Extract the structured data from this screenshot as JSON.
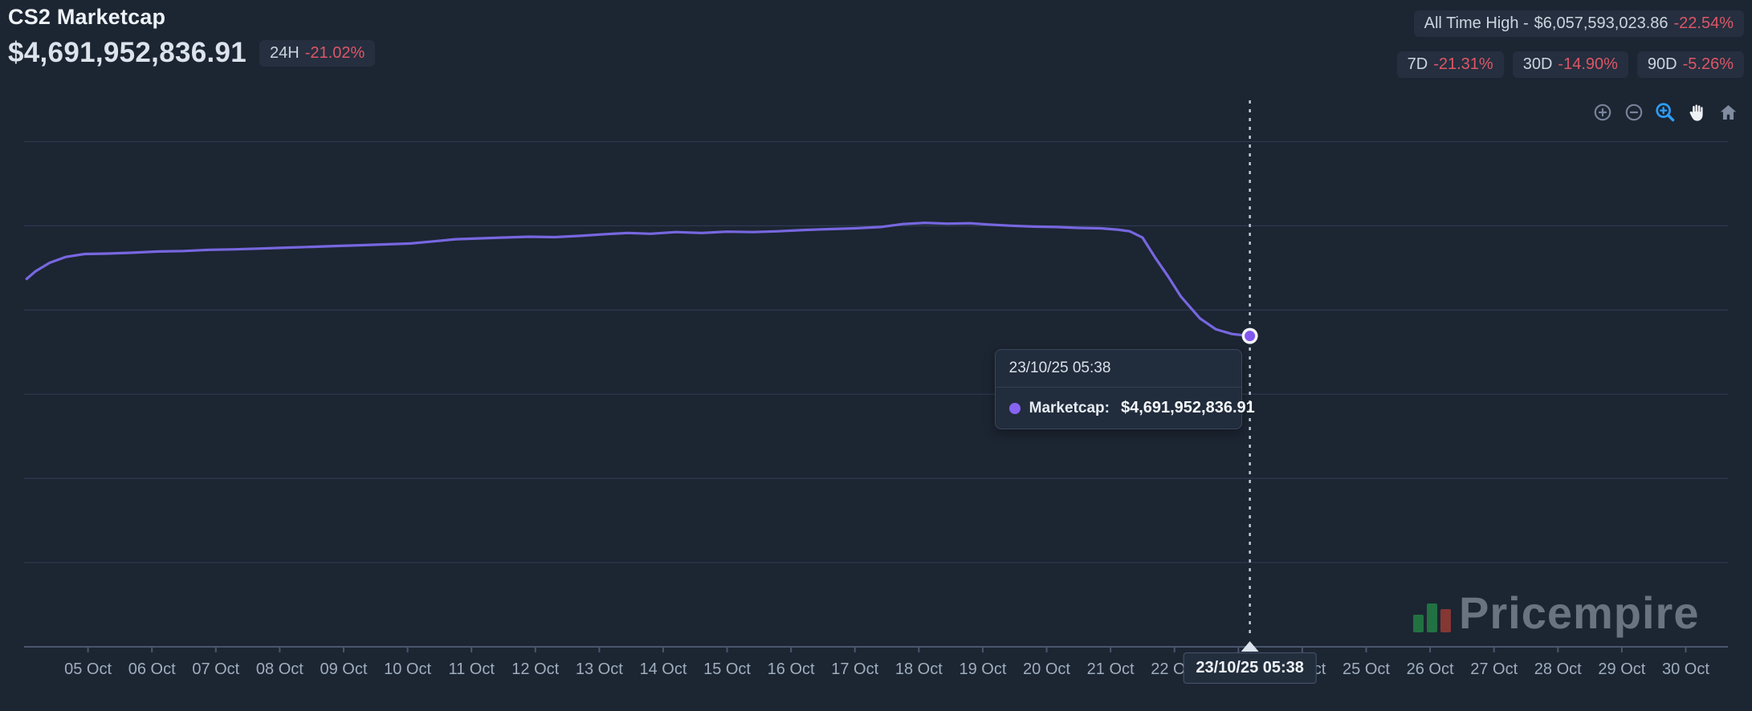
{
  "header": {
    "title": "CS2 Marketcap",
    "value": "$4,691,952,836.91",
    "change_24h": {
      "label": "24H",
      "value": "-21.02%"
    },
    "all_time_high": {
      "label": "All Time High -",
      "value": "$6,057,593,023.86",
      "change": "-22.54%"
    },
    "period_changes": [
      {
        "label": "7D",
        "value": "-21.31%"
      },
      {
        "label": "30D",
        "value": "-14.90%"
      },
      {
        "label": "90D",
        "value": "-5.26%"
      }
    ]
  },
  "toolbar": {
    "icons": [
      "zoom-in-icon",
      "zoom-out-icon",
      "selection-zoom-icon",
      "pan-icon",
      "reset-zoom-icon"
    ],
    "active_icon": "selection-zoom-icon"
  },
  "chart_data": {
    "type": "line",
    "title": "CS2 Marketcap",
    "xlabel": "",
    "ylabel": "",
    "grid": "horizontal-only",
    "legend": "none",
    "x_unit": "day of October 2025",
    "y_unit": "USD billions",
    "xlim": [
      4.0,
      30.66
    ],
    "ylim_billions": [
      1.0,
      7.49
    ],
    "gridline_values": [
      7,
      6,
      5,
      4,
      3,
      2
    ],
    "x_labels": [
      {
        "d": 5,
        "label": "05 Oct"
      },
      {
        "d": 6,
        "label": "06 Oct"
      },
      {
        "d": 7,
        "label": "07 Oct"
      },
      {
        "d": 8,
        "label": "08 Oct"
      },
      {
        "d": 9,
        "label": "09 Oct"
      },
      {
        "d": 10,
        "label": "10 Oct"
      },
      {
        "d": 11,
        "label": "11 Oct"
      },
      {
        "d": 12,
        "label": "12 Oct"
      },
      {
        "d": 13,
        "label": "13 Oct"
      },
      {
        "d": 14,
        "label": "14 Oct"
      },
      {
        "d": 15,
        "label": "15 Oct"
      },
      {
        "d": 16,
        "label": "16 Oct"
      },
      {
        "d": 17,
        "label": "17 Oct"
      },
      {
        "d": 18,
        "label": "18 Oct"
      },
      {
        "d": 19,
        "label": "19 Oct"
      },
      {
        "d": 20,
        "label": "20 Oct"
      },
      {
        "d": 21,
        "label": "21 Oct"
      },
      {
        "d": 22,
        "label": "22 Oct"
      },
      {
        "d": 23,
        "label": "23 Oct"
      },
      {
        "d": 24,
        "label": "24 Oct"
      },
      {
        "d": 25,
        "label": "25 Oct"
      },
      {
        "d": 26,
        "label": "26 Oct"
      },
      {
        "d": 27,
        "label": "27 Oct"
      },
      {
        "d": 28,
        "label": "28 Oct"
      },
      {
        "d": 29,
        "label": "29 Oct"
      },
      {
        "d": 30,
        "label": "30 Oct"
      }
    ],
    "series": [
      {
        "name": "Marketcap",
        "color": "#7767e0",
        "points": [
          [
            4.04,
            5.37
          ],
          [
            4.18,
            5.46
          ],
          [
            4.4,
            5.56
          ],
          [
            4.65,
            5.63
          ],
          [
            4.95,
            5.665
          ],
          [
            5.3,
            5.67
          ],
          [
            5.7,
            5.68
          ],
          [
            6.1,
            5.695
          ],
          [
            6.5,
            5.7
          ],
          [
            6.9,
            5.715
          ],
          [
            7.3,
            5.72
          ],
          [
            7.7,
            5.73
          ],
          [
            8.1,
            5.74
          ],
          [
            8.5,
            5.75
          ],
          [
            8.9,
            5.76
          ],
          [
            9.3,
            5.77
          ],
          [
            9.7,
            5.78
          ],
          [
            10.05,
            5.79
          ],
          [
            10.4,
            5.815
          ],
          [
            10.75,
            5.84
          ],
          [
            11.1,
            5.85
          ],
          [
            11.5,
            5.86
          ],
          [
            11.9,
            5.87
          ],
          [
            12.3,
            5.865
          ],
          [
            12.7,
            5.88
          ],
          [
            13.1,
            5.9
          ],
          [
            13.45,
            5.915
          ],
          [
            13.8,
            5.905
          ],
          [
            14.2,
            5.925
          ],
          [
            14.6,
            5.915
          ],
          [
            15.0,
            5.93
          ],
          [
            15.4,
            5.925
          ],
          [
            15.8,
            5.935
          ],
          [
            16.2,
            5.95
          ],
          [
            16.6,
            5.96
          ],
          [
            17.0,
            5.97
          ],
          [
            17.4,
            5.985
          ],
          [
            17.75,
            6.02
          ],
          [
            18.1,
            6.035
          ],
          [
            18.45,
            6.025
          ],
          [
            18.8,
            6.03
          ],
          [
            19.1,
            6.015
          ],
          [
            19.45,
            6.0
          ],
          [
            19.8,
            5.99
          ],
          [
            20.15,
            5.985
          ],
          [
            20.5,
            5.975
          ],
          [
            20.85,
            5.97
          ],
          [
            21.1,
            5.955
          ],
          [
            21.3,
            5.935
          ],
          [
            21.5,
            5.86
          ],
          [
            21.7,
            5.62
          ],
          [
            21.9,
            5.4
          ],
          [
            22.1,
            5.16
          ],
          [
            22.4,
            4.9
          ],
          [
            22.65,
            4.77
          ],
          [
            22.9,
            4.715
          ],
          [
            23.18,
            4.69195283691
          ]
        ]
      }
    ],
    "cursor": {
      "d": 23.18,
      "label": "23/10/25 05:38",
      "value_billions": 4.69195283691
    },
    "tooltip": {
      "header": "23/10/25 05:38",
      "series_label": "Marketcap:",
      "value": "$4,691,952,836.91"
    }
  },
  "watermark": {
    "text": "Pricempire"
  },
  "colors": {
    "background": "#1c2532",
    "badge_background": "#252f3f",
    "negative_red": "#dd5666",
    "line_purple": "#7767e0",
    "marker_purple": "#8157f0",
    "active_tool_blue": "#2e9df5",
    "logo_green": "#27a04c",
    "logo_red": "#c54234"
  }
}
